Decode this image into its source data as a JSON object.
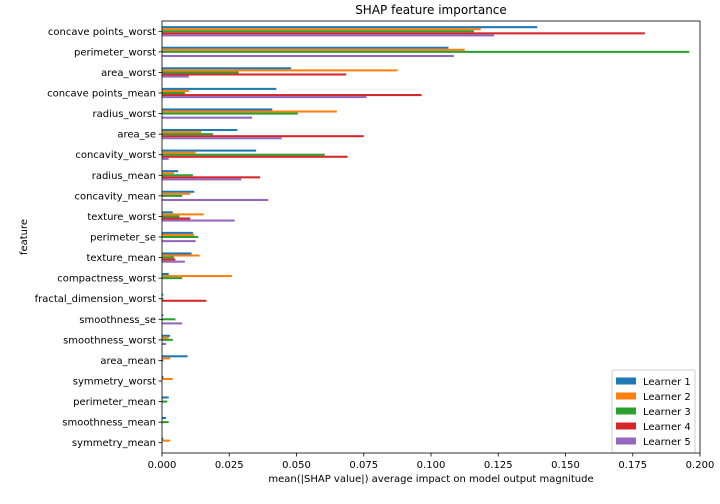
{
  "chart_data": {
    "type": "bar",
    "orientation": "horizontal",
    "title": "SHAP feature importance",
    "xlabel": "mean(|SHAP value|) average impact on model output magnitude",
    "ylabel": "feature",
    "xlim": [
      0,
      0.2
    ],
    "xticks": [
      "0.000",
      "0.025",
      "0.050",
      "0.075",
      "0.100",
      "0.125",
      "0.150",
      "0.175",
      "0.200"
    ],
    "grid": false,
    "legend_position": "lower-right",
    "categories": [
      "concave points_worst",
      "perimeter_worst",
      "area_worst",
      "concave points_mean",
      "radius_worst",
      "area_se",
      "concavity_worst",
      "radius_mean",
      "concavity_mean",
      "texture_worst",
      "perimeter_se",
      "texture_mean",
      "compactness_worst",
      "fractal_dimension_worst",
      "smoothness_se",
      "smoothness_worst",
      "area_mean",
      "symmetry_worst",
      "perimeter_mean",
      "smoothness_mean",
      "symmetry_mean"
    ],
    "series": [
      {
        "name": "Learner 1",
        "color": "#1f77b4",
        "values": [
          0.1395,
          0.1065,
          0.048,
          0.0425,
          0.041,
          0.028,
          0.035,
          0.006,
          0.012,
          0.004,
          0.0115,
          0.011,
          0.0025,
          0.0005,
          0.0005,
          0.003,
          0.0095,
          0.0005,
          0.0025,
          0.0015,
          0.0005
        ]
      },
      {
        "name": "Learner 2",
        "color": "#ff7f0e",
        "values": [
          0.1185,
          0.1125,
          0.0875,
          0.01,
          0.065,
          0.0145,
          0.0125,
          0.0045,
          0.0105,
          0.0155,
          0.012,
          0.014,
          0.026,
          0.0,
          0.0,
          0.0025,
          0.003,
          0.004,
          0.0,
          0.0,
          0.003
        ]
      },
      {
        "name": "Learner 3",
        "color": "#2ca02c",
        "values": [
          0.116,
          0.196,
          0.0285,
          0.0085,
          0.0505,
          0.019,
          0.0605,
          0.0115,
          0.0075,
          0.0065,
          0.0135,
          0.0045,
          0.0075,
          0.0005,
          0.005,
          0.004,
          0.0005,
          0.0,
          0.002,
          0.0025,
          0.0
        ]
      },
      {
        "name": "Learner 4",
        "color": "#d62728",
        "values": [
          0.1795,
          0.0,
          0.0685,
          0.0965,
          0.0,
          0.075,
          0.069,
          0.0365,
          0.0,
          0.0105,
          0.0,
          0.005,
          0.0,
          0.0165,
          0.0,
          0.0,
          0.0,
          0.0,
          0.0,
          0.0,
          0.0
        ]
      },
      {
        "name": "Learner 5",
        "color": "#9467bd",
        "values": [
          0.1235,
          0.1085,
          0.01,
          0.076,
          0.0335,
          0.0445,
          0.0025,
          0.0295,
          0.0395,
          0.027,
          0.0125,
          0.0085,
          0.0,
          0.0,
          0.0075,
          0.0015,
          0.0,
          0.0,
          0.0,
          0.0,
          0.0
        ]
      }
    ]
  }
}
